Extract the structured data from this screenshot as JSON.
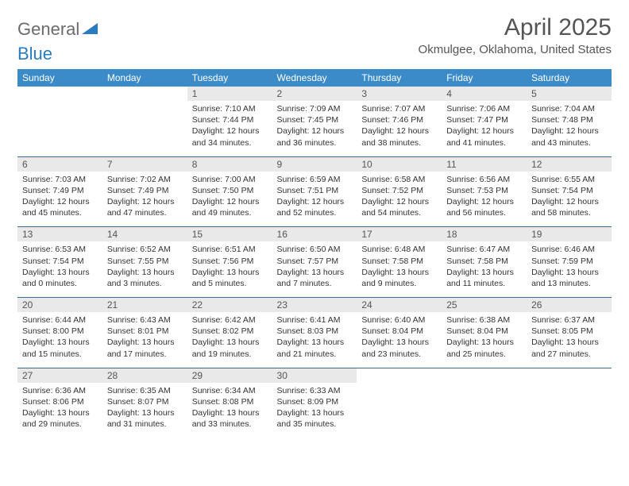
{
  "logo": {
    "text1": "General",
    "text2": "Blue"
  },
  "title": "April 2025",
  "location": "Okmulgee, Oklahoma, United States",
  "colors": {
    "header_bg": "#3b8bc9",
    "header_text": "#ffffff",
    "daynum_bg": "#e9e9e9",
    "row_border": "#3b6b8f",
    "title_color": "#555555",
    "body_text": "#333333",
    "logo_gray": "#6b6b6b",
    "logo_blue": "#2b7bbf"
  },
  "fonts": {
    "title_size": 30,
    "location_size": 15,
    "weekday_size": 12,
    "daynum_size": 12,
    "body_size": 10.5
  },
  "weekdays": [
    "Sunday",
    "Monday",
    "Tuesday",
    "Wednesday",
    "Thursday",
    "Friday",
    "Saturday"
  ],
  "weeks": [
    [
      null,
      null,
      {
        "n": "1",
        "sr": "7:10 AM",
        "ss": "7:44 PM",
        "dl": "12 hours and 34 minutes."
      },
      {
        "n": "2",
        "sr": "7:09 AM",
        "ss": "7:45 PM",
        "dl": "12 hours and 36 minutes."
      },
      {
        "n": "3",
        "sr": "7:07 AM",
        "ss": "7:46 PM",
        "dl": "12 hours and 38 minutes."
      },
      {
        "n": "4",
        "sr": "7:06 AM",
        "ss": "7:47 PM",
        "dl": "12 hours and 41 minutes."
      },
      {
        "n": "5",
        "sr": "7:04 AM",
        "ss": "7:48 PM",
        "dl": "12 hours and 43 minutes."
      }
    ],
    [
      {
        "n": "6",
        "sr": "7:03 AM",
        "ss": "7:49 PM",
        "dl": "12 hours and 45 minutes."
      },
      {
        "n": "7",
        "sr": "7:02 AM",
        "ss": "7:49 PM",
        "dl": "12 hours and 47 minutes."
      },
      {
        "n": "8",
        "sr": "7:00 AM",
        "ss": "7:50 PM",
        "dl": "12 hours and 49 minutes."
      },
      {
        "n": "9",
        "sr": "6:59 AM",
        "ss": "7:51 PM",
        "dl": "12 hours and 52 minutes."
      },
      {
        "n": "10",
        "sr": "6:58 AM",
        "ss": "7:52 PM",
        "dl": "12 hours and 54 minutes."
      },
      {
        "n": "11",
        "sr": "6:56 AM",
        "ss": "7:53 PM",
        "dl": "12 hours and 56 minutes."
      },
      {
        "n": "12",
        "sr": "6:55 AM",
        "ss": "7:54 PM",
        "dl": "12 hours and 58 minutes."
      }
    ],
    [
      {
        "n": "13",
        "sr": "6:53 AM",
        "ss": "7:54 PM",
        "dl": "13 hours and 0 minutes."
      },
      {
        "n": "14",
        "sr": "6:52 AM",
        "ss": "7:55 PM",
        "dl": "13 hours and 3 minutes."
      },
      {
        "n": "15",
        "sr": "6:51 AM",
        "ss": "7:56 PM",
        "dl": "13 hours and 5 minutes."
      },
      {
        "n": "16",
        "sr": "6:50 AM",
        "ss": "7:57 PM",
        "dl": "13 hours and 7 minutes."
      },
      {
        "n": "17",
        "sr": "6:48 AM",
        "ss": "7:58 PM",
        "dl": "13 hours and 9 minutes."
      },
      {
        "n": "18",
        "sr": "6:47 AM",
        "ss": "7:58 PM",
        "dl": "13 hours and 11 minutes."
      },
      {
        "n": "19",
        "sr": "6:46 AM",
        "ss": "7:59 PM",
        "dl": "13 hours and 13 minutes."
      }
    ],
    [
      {
        "n": "20",
        "sr": "6:44 AM",
        "ss": "8:00 PM",
        "dl": "13 hours and 15 minutes."
      },
      {
        "n": "21",
        "sr": "6:43 AM",
        "ss": "8:01 PM",
        "dl": "13 hours and 17 minutes."
      },
      {
        "n": "22",
        "sr": "6:42 AM",
        "ss": "8:02 PM",
        "dl": "13 hours and 19 minutes."
      },
      {
        "n": "23",
        "sr": "6:41 AM",
        "ss": "8:03 PM",
        "dl": "13 hours and 21 minutes."
      },
      {
        "n": "24",
        "sr": "6:40 AM",
        "ss": "8:04 PM",
        "dl": "13 hours and 23 minutes."
      },
      {
        "n": "25",
        "sr": "6:38 AM",
        "ss": "8:04 PM",
        "dl": "13 hours and 25 minutes."
      },
      {
        "n": "26",
        "sr": "6:37 AM",
        "ss": "8:05 PM",
        "dl": "13 hours and 27 minutes."
      }
    ],
    [
      {
        "n": "27",
        "sr": "6:36 AM",
        "ss": "8:06 PM",
        "dl": "13 hours and 29 minutes."
      },
      {
        "n": "28",
        "sr": "6:35 AM",
        "ss": "8:07 PM",
        "dl": "13 hours and 31 minutes."
      },
      {
        "n": "29",
        "sr": "6:34 AM",
        "ss": "8:08 PM",
        "dl": "13 hours and 33 minutes."
      },
      {
        "n": "30",
        "sr": "6:33 AM",
        "ss": "8:09 PM",
        "dl": "13 hours and 35 minutes."
      },
      null,
      null,
      null
    ]
  ],
  "labels": {
    "sunrise": "Sunrise:",
    "sunset": "Sunset:",
    "daylight": "Daylight:"
  }
}
